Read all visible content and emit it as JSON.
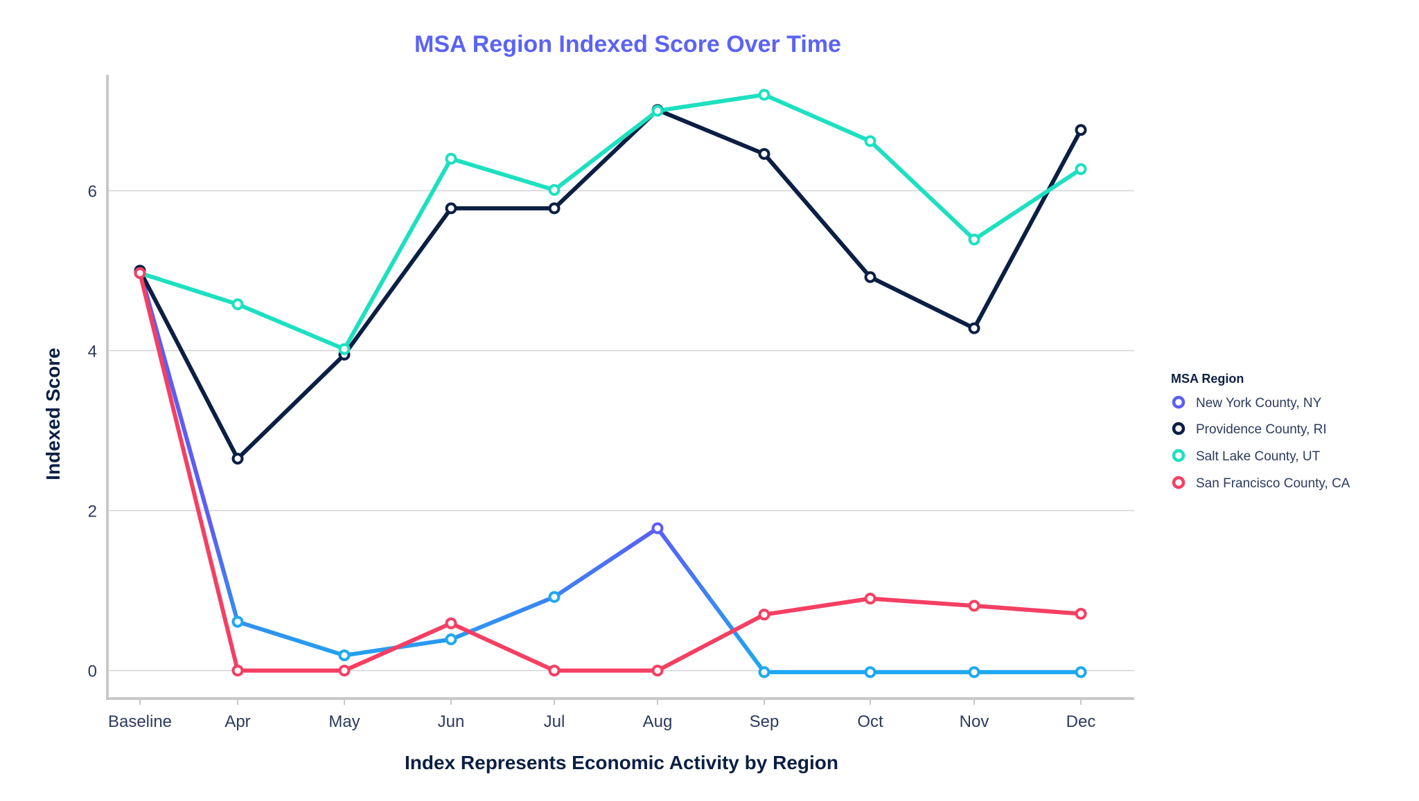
{
  "chart_data": {
    "type": "line",
    "title": "MSA Region Indexed Score Over Time",
    "xlabel": "Index Represents Economic Activity by Region",
    "ylabel": "Indexed Score",
    "categories": [
      "Baseline",
      "Apr",
      "May",
      "Jun",
      "Jul",
      "Aug",
      "Sep",
      "Oct",
      "Nov",
      "Dec"
    ],
    "yticks": [
      0,
      2,
      4,
      6
    ],
    "ylim": [
      -0.35,
      7.45
    ],
    "grid": true,
    "legend": {
      "title": "MSA Region",
      "placement": "right"
    },
    "series": [
      {
        "name": "New York County, NY",
        "color": "#5b5ef5",
        "color_low": "#1ea8f0",
        "values": [
          5.0,
          0.61,
          0.19,
          0.39,
          0.92,
          1.78,
          -0.02,
          -0.02,
          -0.02,
          -0.02
        ]
      },
      {
        "name": "Providence County, RI",
        "color": "#0b1f44",
        "values": [
          5.0,
          2.65,
          3.95,
          5.78,
          5.78,
          7.01,
          6.46,
          4.92,
          4.28,
          6.76
        ]
      },
      {
        "name": "Salt Lake County, UT",
        "color": "#1de0c0",
        "values": [
          4.97,
          4.58,
          4.02,
          6.4,
          6.01,
          7.0,
          7.2,
          6.62,
          5.39,
          6.27
        ]
      },
      {
        "name": "San Francisco County, CA",
        "color": "#f43f63",
        "values": [
          4.97,
          0.0,
          0.0,
          0.59,
          0.0,
          0.0,
          0.7,
          0.9,
          0.81,
          0.71
        ]
      }
    ]
  },
  "colors": {
    "title": "#5b63f5",
    "text": "#2b3a5e",
    "grid": "#d4d4d4",
    "axis": "#c8c8c8"
  }
}
